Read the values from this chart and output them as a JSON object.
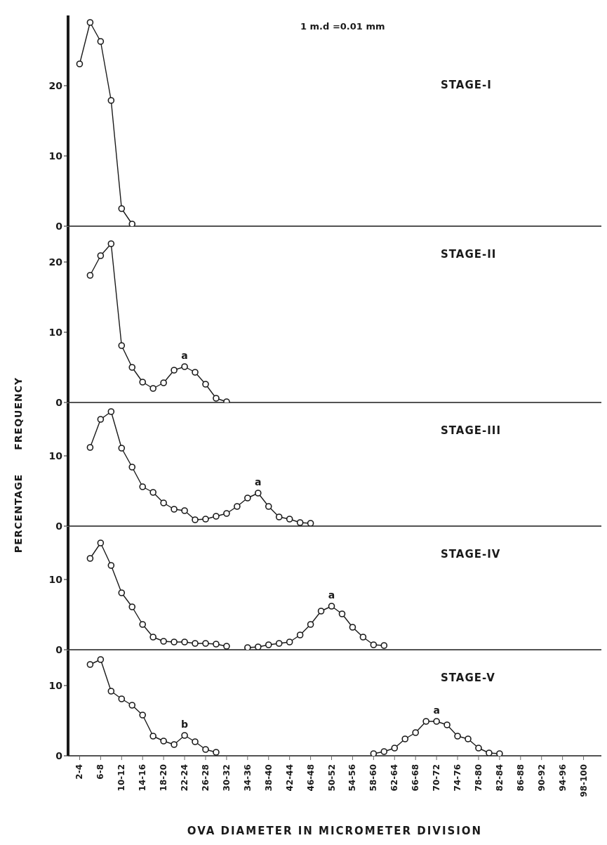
{
  "chart_data": [
    {
      "type": "line",
      "title": "STAGE-I",
      "categories": [
        "2-4",
        null,
        "6-8",
        null,
        "10-12",
        null,
        "14-16",
        null,
        "18-20",
        null,
        "22-24",
        null,
        "26-28",
        null,
        "30-32",
        null,
        "34-36",
        null,
        "38-40",
        null,
        "42-44",
        null,
        "46-48",
        null,
        "50-52",
        null,
        "54-56",
        null,
        "58-60",
        null,
        "62-64",
        null,
        "66-68",
        null,
        "70-72",
        null,
        "74-76",
        null,
        "78-80",
        null,
        "82-84",
        null,
        "86-88",
        null,
        "90-92",
        null,
        "94-96",
        null,
        "98-100"
      ],
      "ylim": [
        0,
        30
      ],
      "yticks": [
        0,
        10,
        20
      ],
      "tick_labels": "y",
      "marker": "circle",
      "annotations": [
        "1 m.d =0.01 mm"
      ],
      "series": [
        {
          "color": "#1a1a1a",
          "values": [
            23.1,
            29.0,
            26.3,
            17.9,
            2.5,
            0.3,
            null,
            null,
            null,
            null,
            null,
            null,
            null,
            null,
            null,
            null,
            null,
            null,
            null,
            null,
            null,
            null,
            null,
            null,
            null,
            null,
            null,
            null,
            null,
            null,
            null,
            null,
            null,
            null,
            null,
            null,
            null,
            null,
            null,
            null,
            null,
            null,
            null,
            null,
            null,
            null,
            null,
            null,
            null
          ]
        }
      ]
    },
    {
      "type": "line",
      "title": "STAGE-II",
      "categories": [
        "2-4",
        null,
        "6-8",
        null,
        "10-12",
        null,
        "14-16",
        null,
        "18-20",
        null,
        "22-24",
        null,
        "26-28",
        null,
        "30-32",
        null,
        "34-36",
        null,
        "38-40",
        null,
        "42-44",
        null,
        "46-48",
        null,
        "50-52",
        null,
        "54-56",
        null,
        "58-60",
        null,
        "62-64",
        null,
        "66-68",
        null,
        "70-72",
        null,
        "74-76",
        null,
        "78-80",
        null,
        "82-84",
        null,
        "86-88",
        null,
        "90-92",
        null,
        "94-96",
        null,
        "98-100"
      ],
      "ylim": [
        0,
        25
      ],
      "yticks": [
        0,
        10,
        20
      ],
      "tick_labels": "y",
      "marker": "circle",
      "annotations": [
        {
          "text": "a",
          "x": "22-24",
          "y": 5.1
        }
      ],
      "series": [
        {
          "color": "#1a1a1a",
          "values": [
            null,
            18.1,
            20.9,
            22.6,
            8.1,
            5.0,
            2.9,
            2.0,
            2.8,
            4.6,
            5.1,
            4.3,
            2.6,
            0.6,
            0.1,
            null,
            null,
            null,
            null,
            null,
            null,
            null,
            null,
            null,
            null,
            null,
            null,
            null,
            null,
            null,
            null,
            null,
            null,
            null,
            null,
            null,
            null,
            null,
            null,
            null,
            null,
            null,
            null,
            null,
            null,
            null,
            null,
            null,
            null
          ]
        }
      ]
    },
    {
      "type": "line",
      "title": "STAGE-III",
      "ylabel": "PERCENTAGE FREQUENCY",
      "categories": [
        "2-4",
        null,
        "6-8",
        null,
        "10-12",
        null,
        "14-16",
        null,
        "18-20",
        null,
        "22-24",
        null,
        "26-28",
        null,
        "30-32",
        null,
        "34-36",
        null,
        "38-40",
        null,
        "42-44",
        null,
        "46-48",
        null,
        "50-52",
        null,
        "54-56",
        null,
        "58-60",
        null,
        "62-64",
        null,
        "66-68",
        null,
        "70-72",
        null,
        "74-76",
        null,
        "78-80",
        null,
        "82-84",
        null,
        "86-88",
        null,
        "90-92",
        null,
        "94-96",
        null,
        "98-100"
      ],
      "ylim": [
        0,
        17.5
      ],
      "yticks": [
        0,
        10
      ],
      "tick_labels": "y",
      "marker": "circle",
      "annotations": [
        {
          "text": "a",
          "y": 4.7
        }
      ],
      "series": [
        {
          "color": "#1a1a1a",
          "values": [
            null,
            11.2,
            15.2,
            16.3,
            11.1,
            8.4,
            5.6,
            4.8,
            3.3,
            2.4,
            2.2,
            0.9,
            1.0,
            1.4,
            1.8,
            2.8,
            4.0,
            4.7,
            2.8,
            1.3,
            1.0,
            0.5,
            0.4,
            null,
            null,
            null,
            null,
            null,
            null,
            null,
            null,
            null,
            null,
            null,
            null,
            null,
            null,
            null,
            null,
            null,
            null,
            null,
            null,
            null,
            null,
            null,
            null,
            null,
            null
          ]
        }
      ]
    },
    {
      "type": "line",
      "title": "STAGE-IV",
      "categories": [
        "2-4",
        null,
        "6-8",
        null,
        "10-12",
        null,
        "14-16",
        null,
        "18-20",
        null,
        "22-24",
        null,
        "26-28",
        null,
        "30-32",
        null,
        "34-36",
        null,
        "38-40",
        null,
        "42-44",
        null,
        "46-48",
        null,
        "50-52",
        null,
        "54-56",
        null,
        "58-60",
        null,
        "62-64",
        null,
        "66-68",
        null,
        "70-72",
        null,
        "74-76",
        null,
        "78-80",
        null,
        "82-84",
        null,
        "86-88",
        null,
        "90-92",
        null,
        "94-96",
        null,
        "98-100"
      ],
      "ylim": [
        0,
        17.5
      ],
      "yticks": [
        0,
        10
      ],
      "tick_labels": "y",
      "marker": "circle",
      "annotations": [
        {
          "text": "a",
          "x": "50-52",
          "y": 6.2
        }
      ],
      "series": [
        {
          "color": "#1a1a1a",
          "values": [
            null,
            13.0,
            15.2,
            12.0,
            8.1,
            6.1,
            3.6,
            1.8,
            1.2,
            1.1,
            1.1,
            0.9,
            0.9,
            0.8,
            0.5,
            null,
            0.3,
            0.4,
            0.7,
            0.9,
            1.1,
            2.1,
            3.6,
            5.5,
            6.2,
            5.1,
            3.2,
            1.8,
            0.7,
            0.6,
            null,
            null,
            null,
            null,
            null,
            null,
            null,
            null,
            null,
            null,
            null,
            null,
            null,
            null,
            null,
            null,
            null,
            null,
            null
          ]
        }
      ]
    },
    {
      "type": "line",
      "title": "STAGE-V",
      "xlabel": "OVA DIAMETER IN MICROMETER DIVISION",
      "categories": [
        "2-4",
        null,
        "6-8",
        null,
        "10-12",
        null,
        "14-16",
        null,
        "18-20",
        null,
        "22-24",
        null,
        "26-28",
        null,
        "30-32",
        null,
        "34-36",
        null,
        "38-40",
        null,
        "42-44",
        null,
        "46-48",
        null,
        "50-52",
        null,
        "54-56",
        null,
        "58-60",
        null,
        "62-64",
        null,
        "66-68",
        null,
        "70-72",
        null,
        "74-76",
        null,
        "78-80",
        null,
        "82-84",
        null,
        "86-88",
        null,
        "90-92",
        null,
        "94-96",
        null,
        "98-100"
      ],
      "ylim": [
        0,
        15
      ],
      "yticks": [
        0,
        10
      ],
      "marker": "circle",
      "annotations": [
        {
          "text": "b",
          "x": "22-24",
          "y": 2.9
        },
        {
          "text": "a",
          "x": "70-72",
          "y": 4.9
        }
      ],
      "series": [
        {
          "color": "#1a1a1a",
          "values": [
            null,
            13.0,
            13.7,
            9.2,
            8.1,
            7.2,
            5.8,
            2.8,
            2.1,
            1.6,
            2.9,
            2.0,
            0.9,
            0.5,
            null,
            null,
            null,
            null,
            null,
            null,
            null,
            null,
            null,
            null,
            null,
            null,
            null,
            null,
            0.3,
            0.6,
            1.1,
            2.4,
            3.3,
            4.9,
            4.9,
            4.4,
            2.8,
            2.4,
            1.1,
            0.4,
            0.3,
            null,
            null,
            null,
            null,
            null,
            null,
            null,
            null
          ]
        }
      ]
    }
  ]
}
